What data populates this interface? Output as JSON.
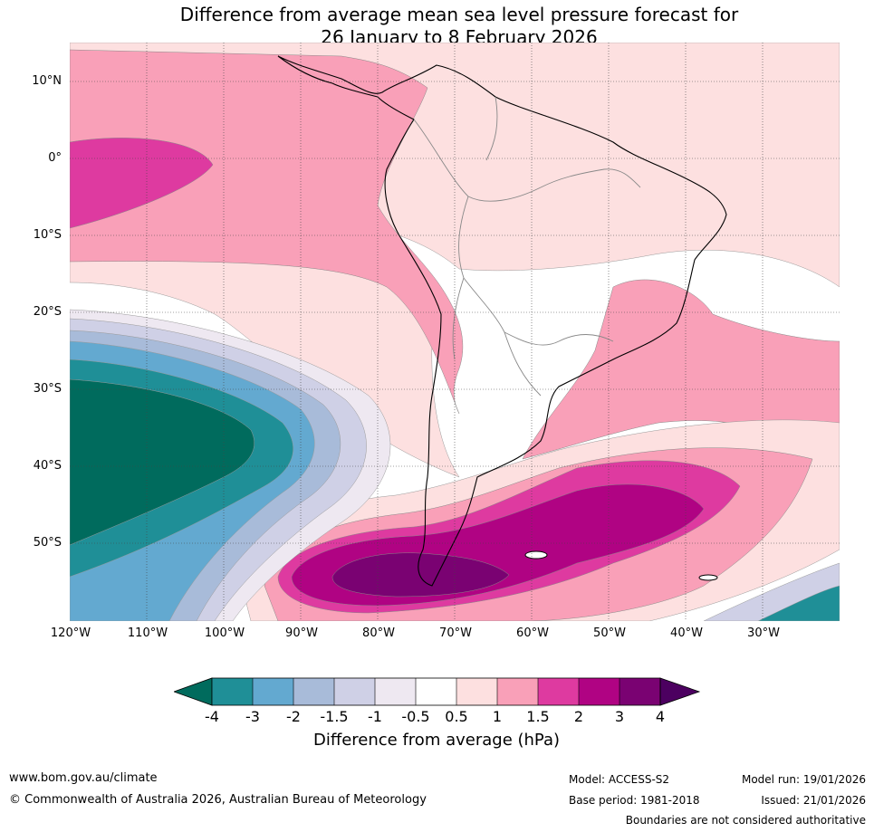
{
  "title": {
    "line1": "Difference from average mean sea level pressure forecast for",
    "line2": "26 January to 8 February 2026"
  },
  "map": {
    "lat_labels": [
      "10°N",
      "0°",
      "10°S",
      "20°S",
      "30°S",
      "40°S",
      "50°S"
    ],
    "lon_labels": [
      "120°W",
      "110°W",
      "100°W",
      "90°W",
      "80°W",
      "70°W",
      "60°W",
      "50°W",
      "40°W",
      "30°W"
    ]
  },
  "colorbar": {
    "title": "Difference from average (hPa)",
    "ticks": [
      "-4",
      "-3",
      "-2",
      "-1.5",
      "-1",
      "-0.5",
      "0.5",
      "1",
      "1.5",
      "2",
      "3",
      "4"
    ],
    "colors": {
      "below_min": "#006b5d",
      "neg4_neg3": "#1f8f97",
      "neg3_neg2": "#63a9d0",
      "neg2_neg15": "#a8bbd9",
      "neg15_neg1": "#cfd0e6",
      "neg1_neg05": "#eee8f1",
      "neg05_05": "#ffffff",
      "pos05_1": "#fde0e0",
      "pos1_15": "#f9a0b8",
      "pos15_2": "#de3aa0",
      "pos2_3": "#b00383",
      "pos3_4": "#7a0272",
      "above_max": "#4c0060"
    }
  },
  "footer": {
    "website": "www.bom.gov.au/climate",
    "copyright": "© Commonwealth of Australia 2026, Australian Bureau of Meteorology",
    "model": "Model: ACCESS-S2",
    "model_run": "Model run: 19/01/2026",
    "base_period": "Base period: 1981-2018",
    "issued": "Issued: 21/01/2026",
    "disclaimer": "Boundaries are not considered authoritative"
  }
}
